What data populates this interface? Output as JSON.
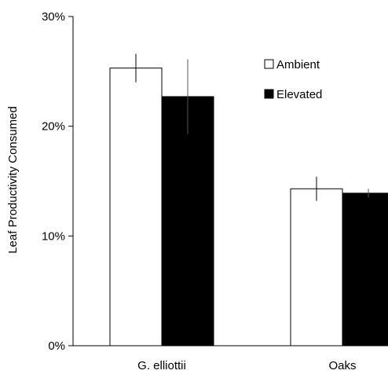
{
  "chart_data": {
    "type": "bar",
    "categories": [
      "G. elliottii",
      "Oaks"
    ],
    "series": [
      {
        "name": "Ambient",
        "values": [
          25.3,
          14.3
        ],
        "errors": [
          1.3,
          1.1
        ],
        "color": "#ffffff"
      },
      {
        "name": "Elevated",
        "values": [
          22.7,
          13.9
        ],
        "errors": [
          3.4,
          0.4
        ],
        "color": "#000000"
      }
    ],
    "ylabel": "Leaf Productivity Consumed",
    "xlabel": "",
    "ylim": [
      0,
      30
    ],
    "yticks": [
      0,
      10,
      20,
      30
    ],
    "ytick_labels": [
      "0%",
      "10%",
      "20%",
      "30%"
    ],
    "grid": false,
    "legend_placement": "top-right"
  }
}
